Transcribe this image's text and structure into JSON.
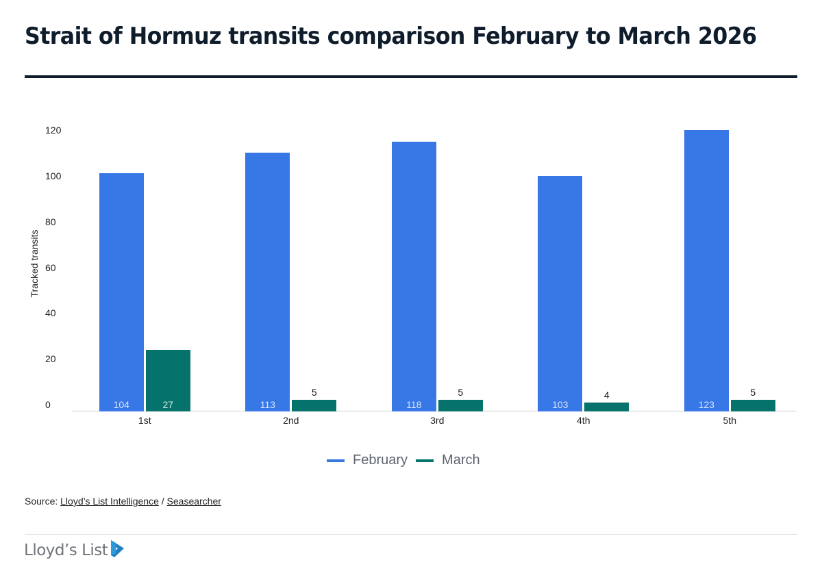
{
  "header": {
    "title": "Strait of Hormuz transits comparison February to March 2026"
  },
  "chart_data": {
    "type": "bar",
    "title": "Strait of Hormuz transits comparison February to March 2026",
    "xlabel": "",
    "ylabel": "Tracked transits",
    "ylim": [
      0,
      120
    ],
    "yticks": [
      "0",
      "20",
      "40",
      "60",
      "80",
      "100",
      "120"
    ],
    "grid": false,
    "legend_position": "bottom",
    "categories": [
      "1st",
      "2nd",
      "3rd",
      "4th",
      "5th"
    ],
    "series": [
      {
        "name": "February",
        "color": "#3877e6",
        "values": [
          104,
          113,
          118,
          103,
          123
        ]
      },
      {
        "name": "March",
        "color": "#05736b",
        "values": [
          27,
          5,
          5,
          4,
          5
        ]
      }
    ]
  },
  "legend": {
    "items": [
      {
        "label": "February",
        "color": "#3877e6"
      },
      {
        "label": "March",
        "color": "#05736b"
      }
    ]
  },
  "footer": {
    "source_prefix": "Source: ",
    "source_link_1": "Lloyd’s List Intelligence",
    "source_separator": " / ",
    "source_link_2": "Seasearcher",
    "logo_text": "Lloyd’s List"
  }
}
